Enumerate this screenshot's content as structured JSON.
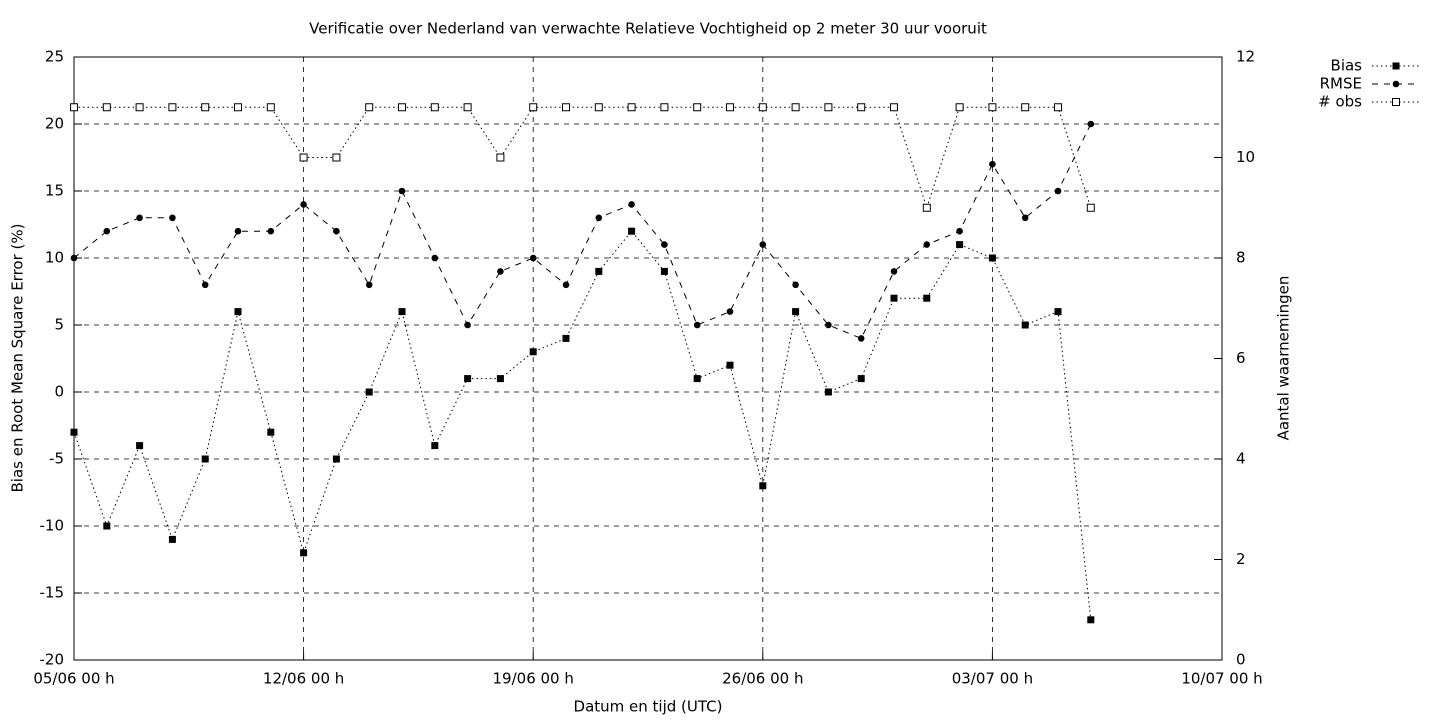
{
  "chart_data": {
    "type": "line",
    "title": "Verificatie over Nederland van verwachte Relatieve Vochtigheid op 2 meter 30 uur vooruit",
    "xlabel": "Datum en tijd (UTC)",
    "ylabel": "Bias en Root Mean Square Error (%)",
    "y2label": "Aantal waarnemingen",
    "x": [
      "05/06 00 h",
      "06/06 00 h",
      "07/06 00 h",
      "08/06 00 h",
      "09/06 00 h",
      "10/06 00 h",
      "11/06 00 h",
      "12/06 00 h",
      "13/06 00 h",
      "14/06 00 h",
      "15/06 00 h",
      "16/06 00 h",
      "17/06 00 h",
      "18/06 00 h",
      "19/06 00 h",
      "20/06 00 h",
      "21/06 00 h",
      "22/06 00 h",
      "23/06 00 h",
      "24/06 00 h",
      "25/06 00 h",
      "26/06 00 h",
      "27/06 00 h",
      "28/06 00 h",
      "29/06 00 h",
      "30/06 00 h",
      "01/07 00 h",
      "02/07 00 h",
      "03/07 00 h",
      "04/07 00 h",
      "05/07 00 h",
      "06/07 00 h"
    ],
    "xlim": [
      "05/06 00 h",
      "10/07 00 h"
    ],
    "xticks": [
      "05/06 00 h",
      "12/06 00 h",
      "19/06 00 h",
      "26/06 00 h",
      "03/07 00 h",
      "10/07 00 h"
    ],
    "ylim": [
      -20,
      25
    ],
    "yticks": [
      -20,
      -15,
      -10,
      -5,
      0,
      5,
      10,
      15,
      20,
      25
    ],
    "y2lim": [
      0,
      12
    ],
    "y2ticks": [
      0,
      2,
      4,
      6,
      8,
      10,
      12
    ],
    "grid": true,
    "legend": "top-right",
    "series": [
      {
        "name": "Bias",
        "color": "#000000",
        "line_style": "dotted",
        "marker": "filled-square",
        "values": [
          -3,
          -10,
          -4,
          -11,
          -5,
          6,
          -3,
          -12,
          -5,
          0,
          6,
          -4,
          1,
          1,
          3,
          4,
          9,
          12,
          9,
          1,
          2,
          -7,
          6,
          0,
          1,
          7,
          7,
          11,
          10,
          5,
          6,
          -17
        ]
      },
      {
        "name": "RMSE",
        "color": "#000000",
        "line_style": "dashed",
        "marker": "filled-circle",
        "values": [
          10,
          12,
          13,
          13,
          8,
          12,
          12,
          14,
          12,
          8,
          15,
          10,
          5,
          9,
          10,
          8,
          13,
          14,
          11,
          5,
          6,
          11,
          8,
          5,
          4,
          9,
          11,
          12,
          17,
          13,
          15,
          20
        ]
      },
      {
        "name": "# obs",
        "color": "#000000",
        "line_style": "dotted",
        "marker": "open-square",
        "axis": "y2",
        "values": [
          11,
          11,
          11,
          11,
          11,
          11,
          11,
          10,
          10,
          11,
          11,
          11,
          11,
          10,
          11,
          11,
          11,
          11,
          11,
          11,
          11,
          11,
          11,
          11,
          11,
          11,
          9,
          11,
          11,
          11,
          11,
          9
        ]
      }
    ]
  }
}
